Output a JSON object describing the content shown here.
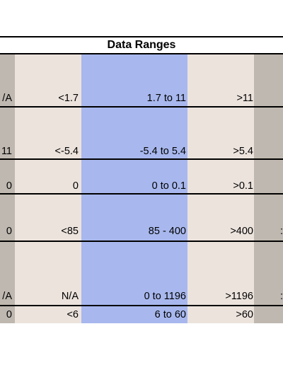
{
  "title": "Data Ranges",
  "rows": [
    {
      "left_clip": "/A",
      "low": "<1.7",
      "mid": "1.7 to 11",
      "high": ">11",
      "right_clip": ""
    },
    {
      "left_clip": "11",
      "low": "<-5.4",
      "mid": "-5.4 to 5.4",
      "high": ">5.4",
      "right_clip": ""
    },
    {
      "left_clip": "0",
      "low": "0",
      "mid": "0 to 0.1",
      "high": ">0.1",
      "right_clip": ""
    },
    {
      "left_clip": "0",
      "low": "<85",
      "mid": "85 - 400",
      "high": ">400",
      "right_clip": ":"
    },
    {
      "left_clip": "/A",
      "low": "N/A",
      "mid": "0 to 1196",
      "high": ">1196",
      "right_clip": ":"
    },
    {
      "left_clip": "0",
      "low": "<6",
      "mid": "6  to 60",
      "high": ">60",
      "right_clip": ""
    }
  ],
  "colors": {
    "gray": "#bfb8b0",
    "beige": "#ece3dd",
    "blue": "#a8b8ee",
    "border": "#000000"
  }
}
